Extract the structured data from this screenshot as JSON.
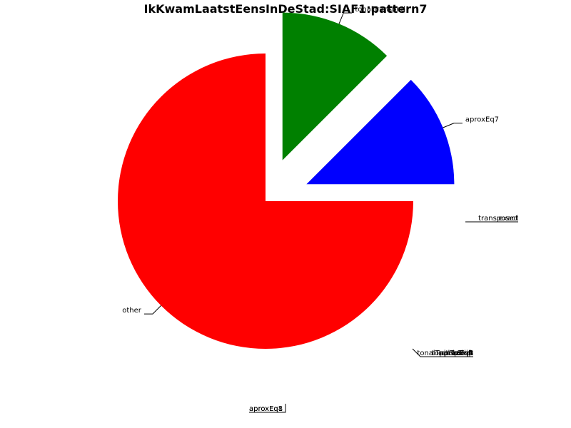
{
  "chart_data": {
    "type": "pie",
    "title": "IkKwamLaatstEensInDeStad:SIAF1:pattern7",
    "start_angle_deg": 0,
    "direction": "clockwise",
    "slices": [
      {
        "label": "other",
        "value": 75,
        "color": "#ff0000",
        "exploded": false
      },
      {
        "label": "tonalTransped",
        "value": 12.5,
        "color": "#008000",
        "exploded": true
      },
      {
        "label": "aproxEq7",
        "value": 12.5,
        "color": "#0000ff",
        "exploded": true
      }
    ],
    "zero_value_labels": [
      {
        "group": "transposed",
        "labels": [
          "transposed",
          "exact"
        ]
      },
      {
        "group": "between",
        "labels": [
          "tonalTransp",
          "aproxEq2",
          "aproxEq3",
          "aproxEq4",
          "aproxEq5",
          "aproxEq6",
          "tonalTranspDiat",
          "pitchShift"
        ]
      },
      {
        "group": "bottom",
        "labels": [
          "aproxEq8",
          "aproxEq1"
        ]
      }
    ]
  }
}
